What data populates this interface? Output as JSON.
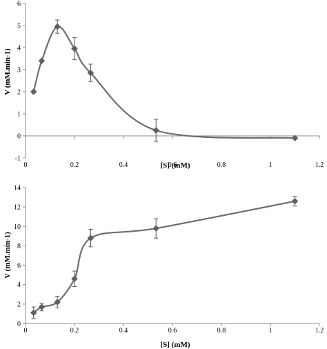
{
  "colors": {
    "series": "#6d6d6d",
    "marker": "#5f5f5f",
    "axis": "#8a8a8a",
    "background": "#ffffff"
  },
  "chart_data": [
    {
      "type": "line",
      "marker": "diamond",
      "smooth": true,
      "error_bars": true,
      "xlabel": "[S] (mM)",
      "ylabel": "V (mM.min-1)",
      "xlim": [
        0,
        1.2
      ],
      "ylim": [
        -1,
        6
      ],
      "xticks": [
        "0",
        "0.2",
        "0.4",
        "0.6",
        "0.8",
        "1",
        "1.2"
      ],
      "yticks": [
        "-1",
        "0",
        "1",
        "2",
        "3",
        "4",
        "5",
        "6"
      ],
      "grid": false,
      "series": [
        {
          "x": [
            0.033,
            0.066,
            0.13,
            0.2,
            0.266,
            0.533,
            1.1
          ],
          "y": [
            2.0,
            3.4,
            4.95,
            3.95,
            2.85,
            0.25,
            -0.1
          ],
          "err": [
            0.0,
            0.0,
            0.3,
            0.5,
            0.4,
            0.5,
            0.0
          ]
        }
      ]
    },
    {
      "type": "line",
      "marker": "diamond",
      "smooth": true,
      "error_bars": true,
      "xlabel": "[S] (mM)",
      "ylabel": "V (mM.min-1)",
      "xlim": [
        0,
        1.2
      ],
      "ylim": [
        0,
        14
      ],
      "xticks": [
        "0",
        "0.2",
        "0.4",
        "0.6",
        "0.8",
        "1",
        "1.2"
      ],
      "yticks": [
        "0",
        "2",
        "4",
        "6",
        "8",
        "10",
        "12",
        "14"
      ],
      "grid": false,
      "series": [
        {
          "x": [
            0.033,
            0.066,
            0.13,
            0.2,
            0.266,
            0.533,
            1.1
          ],
          "y": [
            1.1,
            1.7,
            2.2,
            4.6,
            8.8,
            9.8,
            12.6
          ],
          "err": [
            0.6,
            0.4,
            0.6,
            0.8,
            0.9,
            1.0,
            0.5
          ]
        }
      ]
    }
  ]
}
